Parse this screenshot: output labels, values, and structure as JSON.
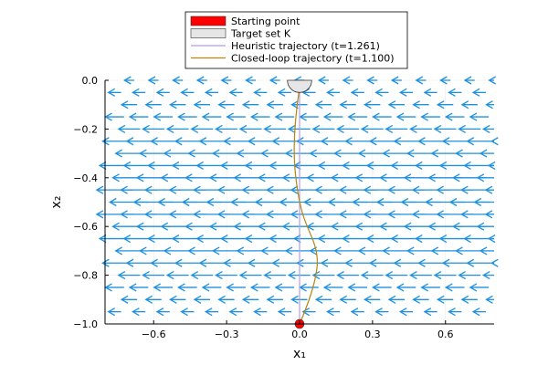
{
  "chart_data": {
    "type": "quiver",
    "xlabel": "x₁",
    "ylabel": "x₂",
    "xlim": [
      -0.8,
      0.8
    ],
    "ylim": [
      -1.0,
      0.0
    ],
    "xticks": [
      {
        "value": -0.6,
        "label": "−0.6"
      },
      {
        "value": -0.3,
        "label": "−0.3"
      },
      {
        "value": 0.0,
        "label": "0.0"
      },
      {
        "value": 0.3,
        "label": "0.3"
      },
      {
        "value": 0.6,
        "label": "0.6"
      }
    ],
    "yticks": [
      {
        "value": 0.0,
        "label": "0.0"
      },
      {
        "value": -0.2,
        "label": "−0.2"
      },
      {
        "value": -0.4,
        "label": "−0.4"
      },
      {
        "value": -0.6,
        "label": "−0.6"
      },
      {
        "value": -0.8,
        "label": "−0.8"
      },
      {
        "value": -1.0,
        "label": "−1.0"
      }
    ],
    "grid": true,
    "legend_position": "top",
    "legend": [
      {
        "label": "Starting point",
        "kind": "patch",
        "color": "#ff0000"
      },
      {
        "label": "Target set K",
        "kind": "patch",
        "color": "#e6e6e6"
      },
      {
        "label": "Heuristic trajectory (t=1.261)",
        "kind": "line",
        "color": "#b19cf0"
      },
      {
        "label": "Closed-loop trajectory (t=1.100)",
        "kind": "line",
        "color": "#b8860b"
      }
    ],
    "vector_field": {
      "color": "#1e90e0",
      "x_start": [
        -0.7,
        -0.76
      ],
      "x_step": 0.1,
      "y_start": 0.0,
      "y_step": -0.05,
      "rows": 20,
      "half_length_at_x2_0": 0.02,
      "half_length_at_x2_minus_0.5": 0.08
    },
    "starting_point": {
      "x": 0.0,
      "y": -1.0,
      "color": "#ff0000"
    },
    "target_set": {
      "center_x": 0.0,
      "center_y": 0.0,
      "radius": 0.05,
      "color": "#e6e6e6"
    },
    "series": [
      {
        "name": "Heuristic trajectory (t=1.261)",
        "color": "#b19cf0",
        "x": [
          0.0,
          0.0
        ],
        "y": [
          -1.0,
          -0.05
        ]
      },
      {
        "name": "Closed-loop trajectory (t=1.100)",
        "color": "#b8860b",
        "x": [
          0.0,
          0.025,
          0.05,
          0.068,
          0.075,
          0.065,
          0.04,
          0.015,
          0.0,
          -0.012,
          -0.022,
          -0.022,
          -0.01,
          0.0
        ],
        "y": [
          -1.0,
          -0.94,
          -0.87,
          -0.8,
          -0.74,
          -0.68,
          -0.62,
          -0.56,
          -0.5,
          -0.43,
          -0.34,
          -0.22,
          -0.1,
          -0.03
        ]
      }
    ]
  }
}
